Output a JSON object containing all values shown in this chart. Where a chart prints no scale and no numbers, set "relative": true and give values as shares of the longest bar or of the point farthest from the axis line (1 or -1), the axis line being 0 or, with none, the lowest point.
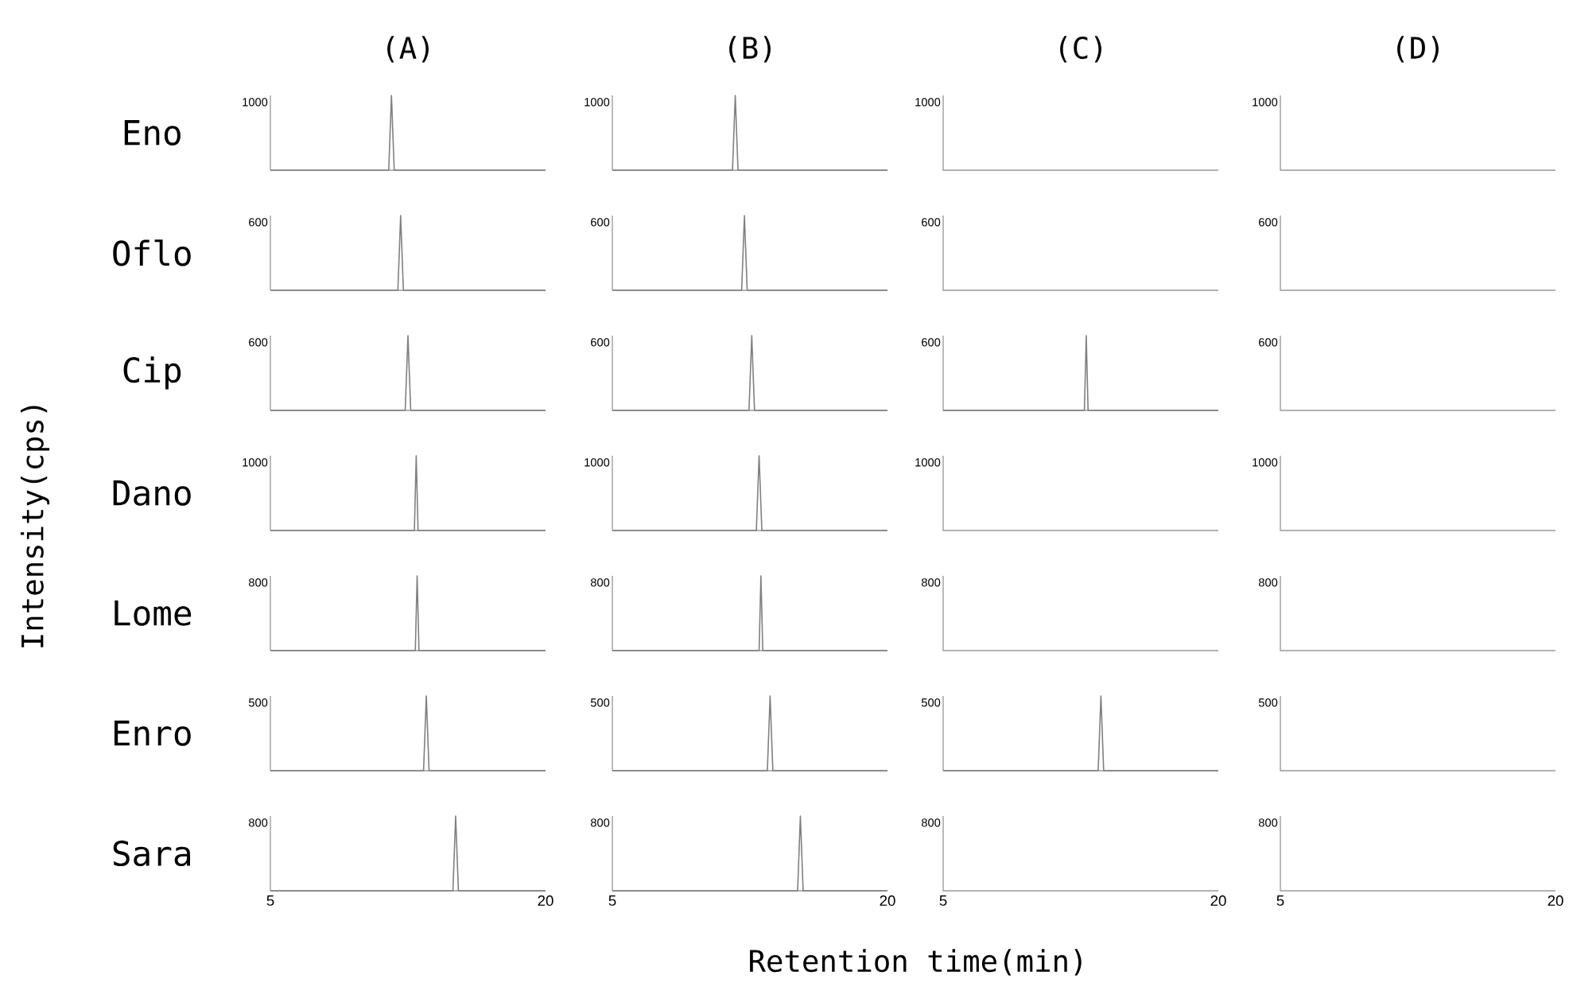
{
  "chart_data": [
    {
      "type": "line",
      "title": "(A)",
      "ylabel": "Eno",
      "x": [
        5,
        11.45,
        11.6,
        11.75,
        20
      ],
      "values": [
        0,
        0,
        1,
        0,
        0
      ],
      "color": "#808080",
      "xlim": [
        5,
        20
      ],
      "xticks": [
        5,
        20
      ],
      "relative": true,
      "annotations": [
        "1000"
      ],
      "tick_labels": false
    },
    {
      "type": "line",
      "title": "(B)",
      "x": [
        5,
        11.55,
        11.7,
        11.85,
        20
      ],
      "values": [
        0,
        0,
        1,
        0,
        0
      ],
      "color": "#808080",
      "xlim": [
        5,
        20
      ],
      "xticks": [
        5,
        20
      ],
      "relative": true,
      "annotations": [
        "1000"
      ],
      "tick_labels": false
    },
    {
      "type": "other",
      "title": "(C)",
      "annotations": [
        "1000"
      ]
    },
    {
      "type": "other",
      "title": "(D)",
      "annotations": [
        "1000"
      ]
    },
    {
      "type": "line",
      "ylabel": "Oflo",
      "x": [
        5,
        11.95,
        12.1,
        12.25,
        20
      ],
      "values": [
        0,
        0,
        1,
        0,
        0
      ],
      "color": "#808080",
      "xlim": [
        5,
        20
      ],
      "xticks": [
        5,
        20
      ],
      "relative": true,
      "annotations": [
        "600"
      ],
      "tick_labels": false
    },
    {
      "type": "line",
      "x": [
        5,
        12.05,
        12.2,
        12.35,
        20
      ],
      "values": [
        0,
        0,
        1,
        0,
        0
      ],
      "color": "#808080",
      "xlim": [
        5,
        20
      ],
      "xticks": [
        5,
        20
      ],
      "relative": true,
      "annotations": [
        "600"
      ],
      "tick_labels": false
    },
    {
      "type": "other",
      "annotations": [
        "600"
      ]
    },
    {
      "type": "other",
      "annotations": [
        "600"
      ]
    },
    {
      "type": "line",
      "ylabel": "Cip",
      "x": [
        5,
        12.35,
        12.5,
        12.65,
        20
      ],
      "values": [
        0,
        0,
        1,
        0,
        0
      ],
      "color": "#808080",
      "xlim": [
        5,
        20
      ],
      "xticks": [
        5,
        20
      ],
      "relative": true,
      "annotations": [
        "600"
      ],
      "tick_labels": false
    },
    {
      "type": "line",
      "x": [
        5,
        12.45,
        12.6,
        12.75,
        20
      ],
      "values": [
        0,
        0,
        1,
        0,
        0
      ],
      "color": "#808080",
      "xlim": [
        5,
        20
      ],
      "xticks": [
        5,
        20
      ],
      "relative": true,
      "annotations": [
        "600"
      ],
      "tick_labels": false
    },
    {
      "type": "line",
      "x": [
        5,
        12.7,
        12.8,
        12.9,
        20
      ],
      "values": [
        0,
        0,
        1,
        0,
        0
      ],
      "color": "#808080",
      "xlim": [
        5,
        20
      ],
      "xticks": [
        5,
        20
      ],
      "relative": true,
      "annotations": [
        "600"
      ],
      "tick_labels": false
    },
    {
      "type": "other",
      "annotations": [
        "600"
      ]
    },
    {
      "type": "line",
      "ylabel": "Dano",
      "x": [
        5,
        12.85,
        12.95,
        13.05,
        20
      ],
      "values": [
        0,
        0,
        1,
        0,
        0
      ],
      "color": "#808080",
      "xlim": [
        5,
        20
      ],
      "xticks": [
        5,
        20
      ],
      "relative": true,
      "annotations": [
        "1000"
      ],
      "tick_labels": false
    },
    {
      "type": "line",
      "x": [
        5,
        12.85,
        13.0,
        13.15,
        20
      ],
      "values": [
        0,
        0,
        1,
        0,
        0
      ],
      "color": "#808080",
      "xlim": [
        5,
        20
      ],
      "xticks": [
        5,
        20
      ],
      "relative": true,
      "annotations": [
        "1000"
      ],
      "tick_labels": false
    },
    {
      "type": "other",
      "annotations": [
        "1000"
      ]
    },
    {
      "type": "other",
      "annotations": [
        "1000"
      ]
    },
    {
      "type": "line",
      "ylabel": "Lome",
      "x": [
        5,
        12.9,
        13.0,
        13.1,
        20
      ],
      "values": [
        0,
        0,
        1,
        0,
        0
      ],
      "color": "#808080",
      "xlim": [
        5,
        20
      ],
      "xticks": [
        5,
        20
      ],
      "relative": true,
      "annotations": [
        "800"
      ],
      "tick_labels": false
    },
    {
      "type": "line",
      "x": [
        5,
        13.0,
        13.1,
        13.2,
        20
      ],
      "values": [
        0,
        0,
        1,
        0,
        0
      ],
      "color": "#808080",
      "xlim": [
        5,
        20
      ],
      "xticks": [
        5,
        20
      ],
      "relative": true,
      "annotations": [
        "800"
      ],
      "tick_labels": false
    },
    {
      "type": "other",
      "annotations": [
        "800"
      ]
    },
    {
      "type": "other",
      "annotations": [
        "800"
      ]
    },
    {
      "type": "line",
      "ylabel": "Enro",
      "x": [
        5,
        13.35,
        13.5,
        13.65,
        20
      ],
      "values": [
        0,
        0,
        1,
        0,
        0
      ],
      "color": "#808080",
      "xlim": [
        5,
        20
      ],
      "xticks": [
        5,
        20
      ],
      "relative": true,
      "annotations": [
        "500"
      ],
      "tick_labels": false
    },
    {
      "type": "line",
      "x": [
        5,
        13.45,
        13.6,
        13.75,
        20
      ],
      "values": [
        0,
        0,
        1,
        0,
        0
      ],
      "color": "#808080",
      "xlim": [
        5,
        20
      ],
      "xticks": [
        5,
        20
      ],
      "relative": true,
      "annotations": [
        "500"
      ],
      "tick_labels": false
    },
    {
      "type": "line",
      "x": [
        5,
        13.45,
        13.6,
        13.75,
        20
      ],
      "values": [
        0,
        0,
        1,
        0,
        0
      ],
      "color": "#808080",
      "xlim": [
        5,
        20
      ],
      "xticks": [
        5,
        20
      ],
      "relative": true,
      "annotations": [
        "500"
      ],
      "tick_labels": false
    },
    {
      "type": "other",
      "annotations": [
        "500"
      ]
    },
    {
      "type": "line",
      "ylabel": "Sara",
      "x": [
        5,
        14.95,
        15.1,
        15.25,
        20
      ],
      "values": [
        0,
        0,
        1,
        0,
        0
      ],
      "color": "#808080",
      "xlim": [
        5,
        20
      ],
      "xticks": [
        5,
        20
      ],
      "relative": true,
      "annotations": [
        "800"
      ],
      "tick_labels": "x"
    },
    {
      "type": "line",
      "x": [
        5,
        15.1,
        15.25,
        15.4,
        20
      ],
      "values": [
        0,
        0,
        1,
        0,
        0
      ],
      "color": "#808080",
      "xlim": [
        5,
        20
      ],
      "xticks": [
        5,
        20
      ],
      "relative": true,
      "annotations": [
        "800"
      ],
      "tick_labels": "x"
    },
    {
      "type": "other",
      "annotations": [
        "800",
        "5",
        "20"
      ]
    },
    {
      "type": "other",
      "annotations": [
        "800",
        "5",
        "20"
      ]
    },
    {
      "type": "other",
      "xlabel": "Retention time(min)",
      "ylabel": "Intensity(cps)"
    }
  ]
}
